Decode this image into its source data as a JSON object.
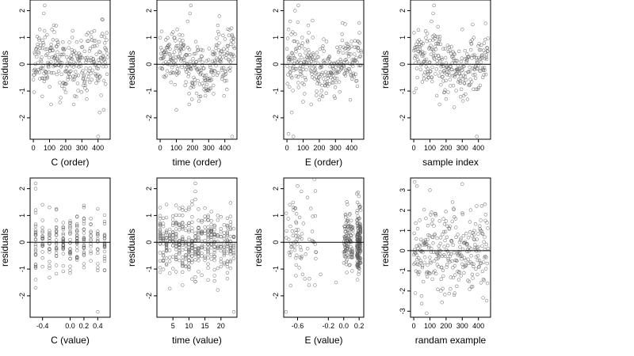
{
  "chart_data": [
    {
      "type": "scatter",
      "panel": "C-order",
      "xlabel": "C (order)",
      "ylabel": "residuals",
      "xlim": [
        -20,
        475
      ],
      "ylim": [
        -2.8,
        2.4
      ],
      "xticks": [
        0,
        100,
        200,
        300,
        400
      ],
      "xtick_labels": [
        "0",
        "100",
        "200",
        "300",
        "400"
      ],
      "yticks": [
        -2,
        -1,
        0,
        1,
        2
      ],
      "ytick_labels": [
        "-2",
        "-1",
        "0",
        "1",
        "2"
      ],
      "reference_line": 0,
      "pattern": "order",
      "seed": 11,
      "points": [
        [
          70,
          2.2
        ],
        [
          65,
          1.9
        ],
        [
          40,
          1.3
        ],
        [
          85,
          1.1
        ],
        [
          130,
          1.2
        ],
        [
          145,
          0.9
        ],
        [
          240,
          1.0
        ],
        [
          410,
          -1.8
        ],
        [
          400,
          -2.7
        ],
        [
          435,
          -1.7
        ],
        [
          110,
          -1.5
        ],
        [
          55,
          -1.2
        ],
        [
          330,
          -1.3
        ],
        [
          250,
          -1.5
        ]
      ]
    },
    {
      "type": "scatter",
      "panel": "time-order",
      "xlabel": "time (order)",
      "ylabel": "residuals",
      "xlim": [
        -20,
        475
      ],
      "ylim": [
        -2.8,
        2.4
      ],
      "xticks": [
        0,
        100,
        200,
        300,
        400
      ],
      "xtick_labels": [
        "0",
        "100",
        "200",
        "300",
        "400"
      ],
      "yticks": [
        -2,
        -1,
        0,
        1,
        2
      ],
      "ytick_labels": [
        "-2",
        "-1",
        "0",
        "1",
        "2"
      ],
      "reference_line": 0,
      "pattern": "order",
      "seed": 23,
      "points": [
        [
          190,
          2.2
        ],
        [
          185,
          1.9
        ],
        [
          170,
          1.6
        ],
        [
          80,
          1.2
        ],
        [
          120,
          1.1
        ],
        [
          445,
          -2.7
        ],
        [
          180,
          -1.5
        ],
        [
          250,
          -1.2
        ],
        [
          330,
          -1.1
        ],
        [
          100,
          -1.7
        ]
      ]
    },
    {
      "type": "scatter",
      "panel": "E-order",
      "xlabel": "E (order)",
      "ylabel": "residuals",
      "xlim": [
        -20,
        475
      ],
      "ylim": [
        -2.8,
        2.4
      ],
      "xticks": [
        0,
        100,
        200,
        300,
        400
      ],
      "xtick_labels": [
        "0",
        "100",
        "200",
        "300",
        "400"
      ],
      "yticks": [
        -2,
        -1,
        0,
        1,
        2
      ],
      "ytick_labels": [
        "-2",
        "-1",
        "0",
        "1",
        "2"
      ],
      "reference_line": 0,
      "pattern": "order",
      "seed": 37,
      "points": [
        [
          70,
          2.2
        ],
        [
          50,
          2.0
        ],
        [
          20,
          1.6
        ],
        [
          10,
          1.3
        ],
        [
          35,
          1.2
        ],
        [
          360,
          1.5
        ],
        [
          10,
          -2.6
        ],
        [
          40,
          -2.7
        ],
        [
          30,
          -1.8
        ],
        [
          100,
          -1.4
        ],
        [
          150,
          -1.5
        ],
        [
          220,
          -1.2
        ]
      ]
    },
    {
      "type": "scatter",
      "panel": "sample-index",
      "xlabel": "sample index",
      "ylabel": "residuals",
      "xlim": [
        -20,
        475
      ],
      "ylim": [
        -2.8,
        2.4
      ],
      "xticks": [
        0,
        100,
        200,
        300,
        400
      ],
      "xtick_labels": [
        "0",
        "100",
        "200",
        "300",
        "400"
      ],
      "yticks": [
        -2,
        -1,
        0,
        1,
        2
      ],
      "ytick_labels": [
        "-2",
        "-1",
        "0",
        "1",
        "2"
      ],
      "reference_line": 0,
      "pattern": "order",
      "seed": 53,
      "points": [
        [
          125,
          2.2
        ],
        [
          120,
          1.9
        ],
        [
          110,
          1.6
        ],
        [
          150,
          1.4
        ],
        [
          300,
          1.3
        ],
        [
          390,
          -2.7
        ],
        [
          160,
          -1.5
        ],
        [
          200,
          -1.3
        ],
        [
          250,
          -1.6
        ]
      ]
    },
    {
      "type": "scatter",
      "panel": "C-value",
      "xlabel": "C (value)",
      "ylabel": "residuals",
      "xlim": [
        -0.58,
        0.58
      ],
      "ylim": [
        -2.8,
        2.4
      ],
      "xticks": [
        -0.4,
        0.0,
        0.2,
        0.4
      ],
      "xtick_labels": [
        "-0.4",
        "0.0",
        "0.2",
        "0.4"
      ],
      "yticks": [
        -2,
        -1,
        0,
        1,
        2
      ],
      "ytick_labels": [
        "-2",
        "-1",
        "0",
        "1",
        "2"
      ],
      "reference_line": 0,
      "pattern": "columns",
      "seed": 71,
      "x_levels": [
        -0.5,
        -0.4,
        -0.3,
        -0.2,
        -0.1,
        0.0,
        0.1,
        0.2,
        0.3,
        0.4,
        0.5
      ],
      "points": [
        [
          -0.5,
          2.2
        ],
        [
          -0.5,
          2.0
        ],
        [
          -0.5,
          1.2
        ],
        [
          -0.5,
          1.1
        ],
        [
          -0.4,
          1.4
        ],
        [
          -0.3,
          1.3
        ],
        [
          -0.5,
          -1.7
        ],
        [
          0.4,
          -2.6
        ],
        [
          -0.5,
          -1.4
        ],
        [
          0.0,
          -0.9
        ],
        [
          0.2,
          1.3
        ]
      ]
    },
    {
      "type": "scatter",
      "panel": "time-value",
      "xlabel": "time (value)",
      "ylabel": "residuals",
      "xlim": [
        0,
        25
      ],
      "ylim": [
        -2.8,
        2.4
      ],
      "xticks": [
        5,
        10,
        15,
        20
      ],
      "xtick_labels": [
        "5",
        "10",
        "15",
        "20"
      ],
      "yticks": [
        -2,
        -1,
        0,
        1,
        2
      ],
      "ytick_labels": [
        "-2",
        "-1",
        "0",
        "1",
        "2"
      ],
      "reference_line": 0,
      "pattern": "columns",
      "seed": 89,
      "x_levels": [
        1,
        2,
        3,
        4,
        5,
        6,
        7,
        8,
        9,
        10,
        11,
        12,
        13,
        14,
        15,
        16,
        17,
        18,
        19,
        20,
        21,
        22,
        23,
        24
      ],
      "points": [
        [
          12,
          2.2
        ],
        [
          12,
          1.9
        ],
        [
          12,
          1.6
        ],
        [
          10,
          1.3
        ],
        [
          8,
          1.2
        ],
        [
          24,
          -2.6
        ],
        [
          12,
          -1.3
        ],
        [
          8,
          -1.6
        ],
        [
          6,
          -1.1
        ]
      ]
    },
    {
      "type": "scatter",
      "panel": "E-value",
      "xlabel": "E (value)",
      "ylabel": "residuals",
      "xlim": [
        -0.78,
        0.26
      ],
      "ylim": [
        -2.8,
        2.4
      ],
      "xticks": [
        -0.6,
        -0.2,
        0.0,
        0.2
      ],
      "xtick_labels": [
        "-0.6",
        "-0.2",
        "0.0",
        "0.2"
      ],
      "yticks": [
        -2,
        -1,
        0,
        1,
        2
      ],
      "ytick_labels": [
        "-2",
        "-1",
        "0",
        "1",
        "2"
      ],
      "reference_line": 0,
      "pattern": "clusters",
      "seed": 97,
      "clusters": [
        {
          "xmin": -0.75,
          "xmax": -0.35,
          "n": 70,
          "sd": 0.8
        },
        {
          "xmin": 0.0,
          "xmax": 0.12,
          "n": 110,
          "sd": 0.55
        },
        {
          "xmin": 0.17,
          "xmax": 0.22,
          "n": 160,
          "sd": 0.55
        }
      ],
      "points": [
        [
          -0.6,
          2.1
        ],
        [
          -0.55,
          1.9
        ],
        [
          -0.7,
          1.4
        ],
        [
          -0.75,
          -2.6
        ],
        [
          -0.45,
          -1.6
        ],
        [
          0.2,
          1.4
        ],
        [
          0.22,
          1.2
        ],
        [
          -0.3,
          -1.2
        ],
        [
          -0.1,
          -1.5
        ]
      ]
    },
    {
      "type": "scatter",
      "panel": "random-example",
      "xlabel": "randam example",
      "ylabel": "residuals",
      "xlim": [
        -20,
        475
      ],
      "ylim": [
        -3.3,
        3.6
      ],
      "xticks": [
        0,
        100,
        200,
        300,
        400
      ],
      "xtick_labels": [
        "0",
        "100",
        "200",
        "300",
        "400"
      ],
      "yticks": [
        -3,
        -2,
        -1,
        0,
        1,
        2,
        3
      ],
      "ytick_labels": [
        "-3",
        "-2",
        "-1",
        "0",
        "1",
        "2",
        "3"
      ],
      "reference_line": 0,
      "pattern": "random",
      "seed": 113,
      "points": [
        [
          5,
          3.4
        ],
        [
          20,
          3.2
        ],
        [
          100,
          3.0
        ],
        [
          300,
          3.3
        ],
        [
          440,
          2.3
        ],
        [
          80,
          -3.1
        ],
        [
          10,
          -2.1
        ],
        [
          250,
          -2.2
        ]
      ]
    }
  ]
}
